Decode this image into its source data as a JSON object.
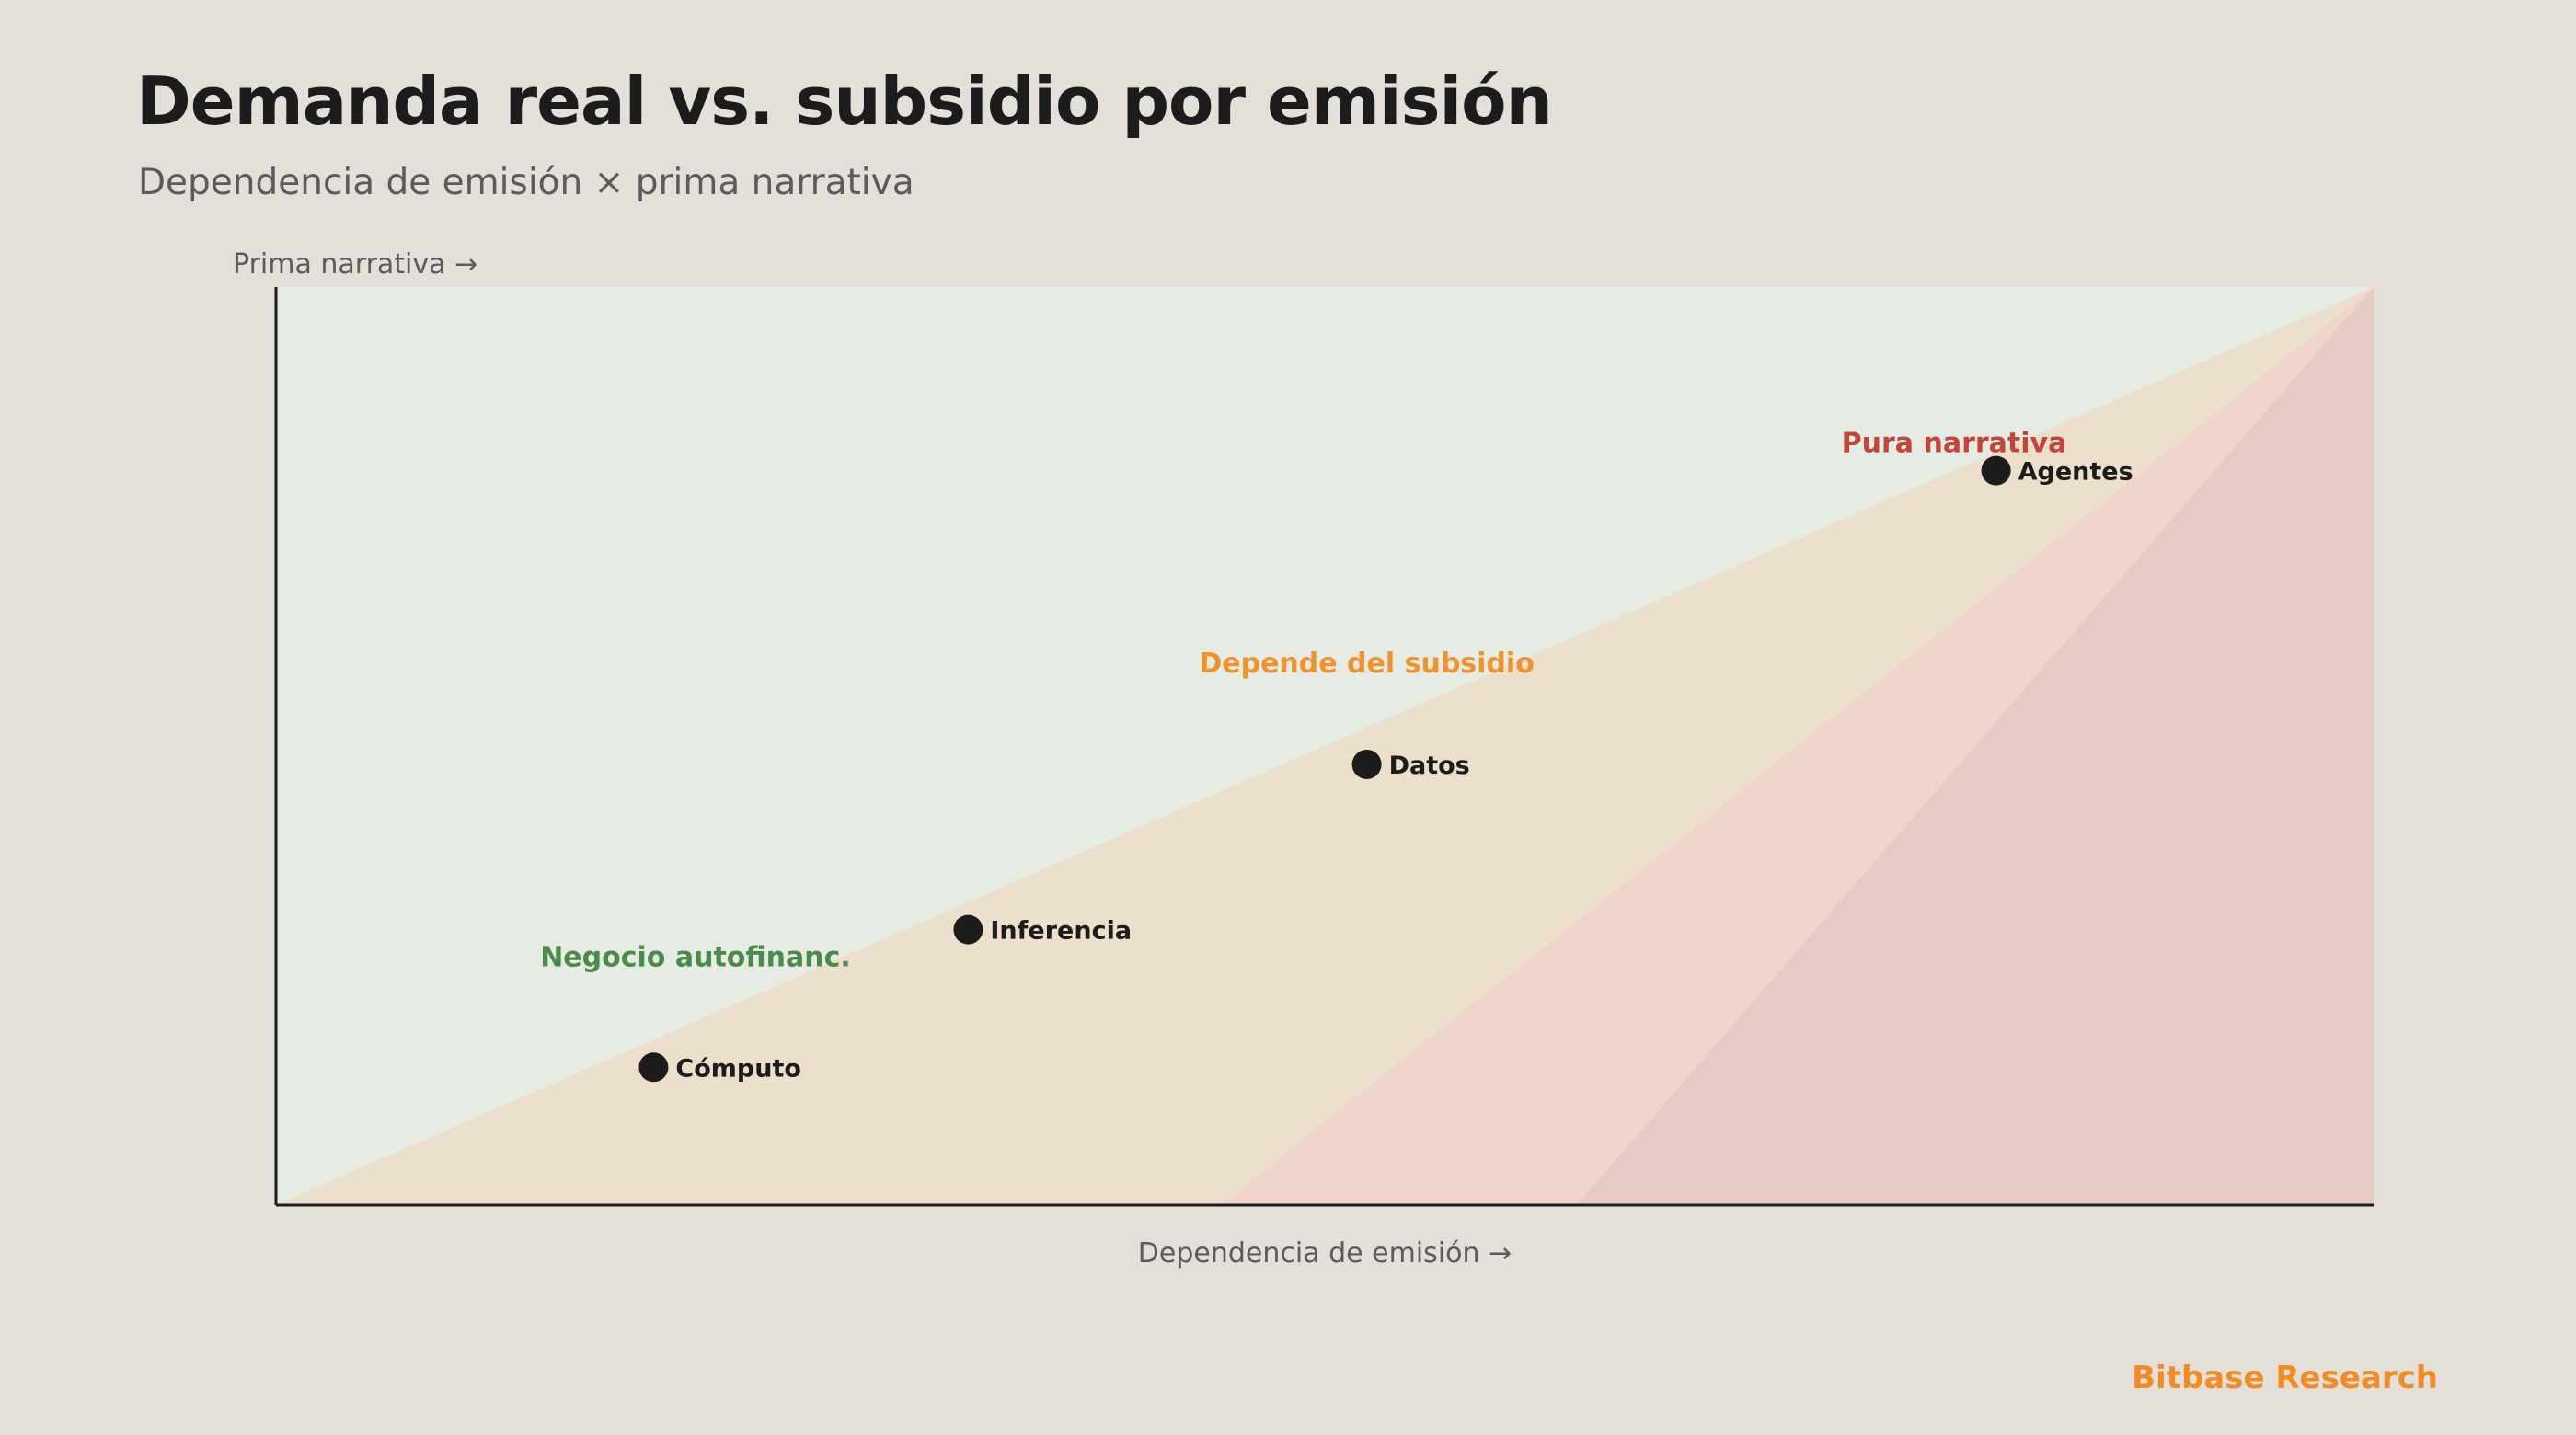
{
  "title": "Demanda real vs. subsidio por emisión",
  "subtitle": "Dependencia de emisión × prima narrativa",
  "brand": {
    "name": "Bitbase Research",
    "color": "#f08c28"
  },
  "chart_data": {
    "type": "scatter",
    "xlabel": "Dependencia de emisión →",
    "ylabel": "Prima narrativa →",
    "xlim": [
      0,
      1
    ],
    "ylim": [
      0,
      1
    ],
    "grid": false,
    "points": [
      {
        "label": "Cómputo",
        "x": 0.18,
        "y": 0.15
      },
      {
        "label": "Inferencia",
        "x": 0.33,
        "y": 0.3
      },
      {
        "label": "Datos",
        "x": 0.52,
        "y": 0.48
      },
      {
        "label": "Agentes",
        "x": 0.82,
        "y": 0.8
      }
    ],
    "point_color": "#1c1c1c",
    "zones": [
      {
        "label": "Negocio autofinanc.",
        "color": "#4a8a4a",
        "fill": "#e6ebe3",
        "label_x": 0.2,
        "label_y": 0.26,
        "vertices": [
          [
            0,
            0
          ],
          [
            0,
            1
          ],
          [
            1,
            1
          ]
        ]
      },
      {
        "label": "Depende del subsidio",
        "color": "#f0922e",
        "fill": "#ecdfcc",
        "label_x": 0.52,
        "label_y": 0.58,
        "vertices": [
          [
            0,
            0
          ],
          [
            1,
            1
          ],
          [
            0.45,
            0
          ]
        ]
      },
      {
        "label": "",
        "color": "",
        "fill": "#efd5cb",
        "vertices": [
          [
            0.45,
            0
          ],
          [
            1,
            1
          ],
          [
            0.62,
            0
          ]
        ]
      },
      {
        "label": "Pura narrativa",
        "color": "#c0453a",
        "fill": "#e6cac4",
        "label_x": 0.8,
        "label_y": 0.82,
        "vertices": [
          [
            0.62,
            0
          ],
          [
            1,
            1
          ],
          [
            1,
            0
          ]
        ]
      }
    ]
  }
}
